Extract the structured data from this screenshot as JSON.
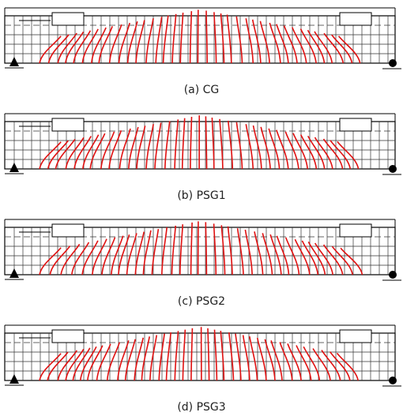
{
  "panels": [
    {
      "caption": "(a)  CG"
    },
    {
      "caption": "(b)  PSG1"
    },
    {
      "caption": "(c)  PSG2"
    },
    {
      "caption": "(d)  PSG3"
    }
  ]
}
